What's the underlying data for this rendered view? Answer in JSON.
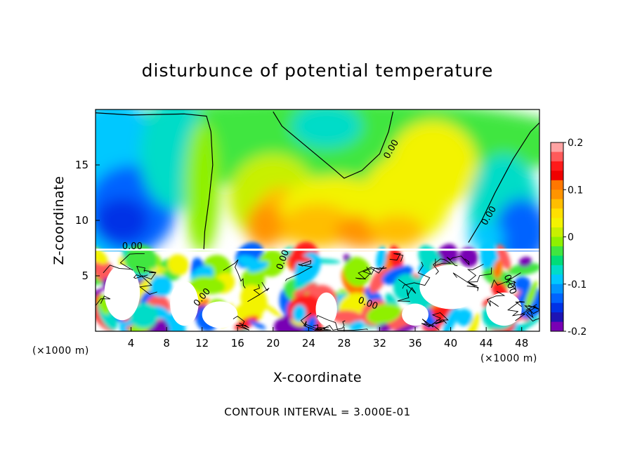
{
  "title": "disturbunce of potential temperature",
  "footer": "CONTOUR INTERVAL = 3.000E-01",
  "chart_data": {
    "type": "heatmap",
    "title": "disturbunce of potential temperature",
    "xlabel": "X-coordinate",
    "ylabel": "Z-coordinate",
    "x_unit": "(×1000 m)",
    "z_unit": "(×1000 m)",
    "xlim": [
      0,
      50
    ],
    "ylim": [
      0,
      20
    ],
    "x_ticks": [
      4,
      8,
      12,
      16,
      20,
      24,
      28,
      32,
      36,
      40,
      44,
      48
    ],
    "y_ticks": [
      5,
      10,
      15
    ],
    "colorbar": {
      "range": [
        -0.2,
        0.2
      ],
      "tick_labels": [
        "0.2",
        "0.1",
        "0",
        "-0.1",
        "-0.2"
      ],
      "colors": [
        "#ffa3a3",
        "#ff5a5a",
        "#ff1a1a",
        "#ef0000",
        "#ff7700",
        "#ff9400",
        "#ffbe00",
        "#ffe000",
        "#f3f300",
        "#c8f000",
        "#8ff000",
        "#40e640",
        "#00dc78",
        "#00dcc8",
        "#00c8ff",
        "#0096ff",
        "#0064ff",
        "#0032e6",
        "#1e14b4",
        "#7800b4"
      ]
    },
    "contour_interval": "3.000E-01",
    "contour_labels": [
      "0.00"
    ],
    "grid": false
  }
}
